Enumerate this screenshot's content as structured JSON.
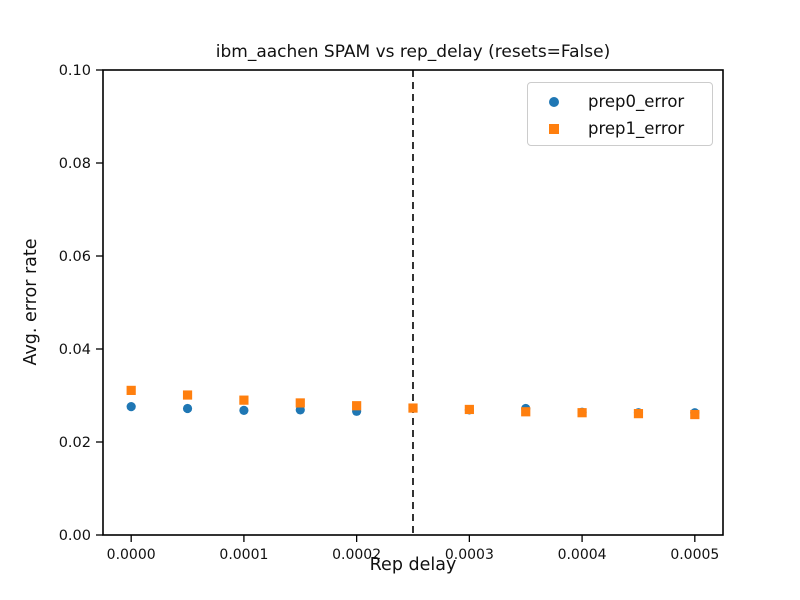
{
  "chart_data": {
    "type": "scatter",
    "title": "ibm_aachen SPAM vs rep_delay (resets=False)",
    "xlabel": "Rep delay",
    "ylabel": "Avg. error rate",
    "x": [
      0.0,
      5e-05,
      0.0001,
      0.00015,
      0.0002,
      0.00025,
      0.0003,
      0.00035,
      0.0004,
      0.00045,
      0.0005
    ],
    "series": [
      {
        "name": "prep0_error",
        "marker": "circle",
        "color": "#1f77b4",
        "values": [
          0.0276,
          0.0272,
          0.0268,
          0.0269,
          0.0266,
          0.0273,
          0.0269,
          0.0272,
          0.0264,
          0.0263,
          0.0263
        ]
      },
      {
        "name": "prep1_error",
        "marker": "square",
        "color": "#ff7f0e",
        "values": [
          0.0311,
          0.0301,
          0.029,
          0.0284,
          0.0278,
          0.0273,
          0.027,
          0.0265,
          0.0263,
          0.0261,
          0.0259
        ]
      }
    ],
    "vline": {
      "x": 0.00025,
      "style": "dashed",
      "color": "#000000"
    },
    "xlim": [
      -2.5e-05,
      0.000525
    ],
    "ylim": [
      0.0,
      0.1
    ],
    "xticks": {
      "values": [
        0.0,
        0.0001,
        0.0002,
        0.0003,
        0.0004,
        0.0005
      ],
      "labels": [
        "0.0000",
        "0.0001",
        "0.0002",
        "0.0003",
        "0.0004",
        "0.0005"
      ]
    },
    "yticks": {
      "values": [
        0.0,
        0.02,
        0.04,
        0.06,
        0.08,
        0.1
      ],
      "labels": [
        "0.00",
        "0.02",
        "0.04",
        "0.06",
        "0.08",
        "0.10"
      ]
    },
    "legend": {
      "position": "upper right",
      "entries": [
        "prep0_error",
        "prep1_error"
      ]
    },
    "grid": false,
    "axis_color": "#000000"
  }
}
